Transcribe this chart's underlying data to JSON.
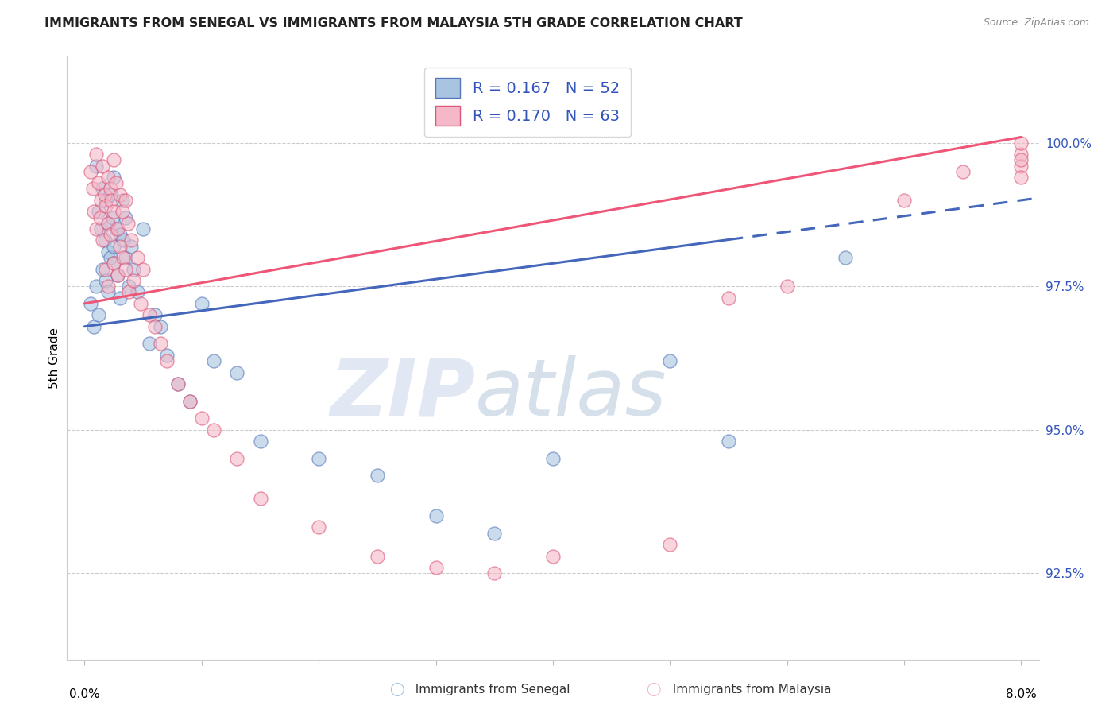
{
  "title": "IMMIGRANTS FROM SENEGAL VS IMMIGRANTS FROM MALAYSIA 5TH GRADE CORRELATION CHART",
  "source": "Source: ZipAtlas.com",
  "ylabel": "5th Grade",
  "ytick_labels": [
    "92.5%",
    "95.0%",
    "97.5%",
    "100.0%"
  ],
  "ytick_values": [
    92.5,
    95.0,
    97.5,
    100.0
  ],
  "xlim": [
    0.0,
    8.0
  ],
  "ylim": [
    91.0,
    101.5
  ],
  "legend_blue_r": "R = 0.167",
  "legend_blue_n": "N = 52",
  "legend_pink_r": "R = 0.170",
  "legend_pink_n": "N = 63",
  "watermark_zip": "ZIP",
  "watermark_atlas": "atlas",
  "blue_color": "#A8C4E0",
  "pink_color": "#F4B8C8",
  "blue_edge_color": "#5577BB",
  "pink_edge_color": "#DD5577",
  "blue_line_color": "#4466BB",
  "pink_line_color": "#EE5577",
  "legend_text_color": "#3355BB",
  "blue_scatter_x": [
    0.05,
    0.08,
    0.1,
    0.1,
    0.12,
    0.12,
    0.14,
    0.15,
    0.15,
    0.17,
    0.18,
    0.18,
    0.2,
    0.2,
    0.2,
    0.22,
    0.22,
    0.24,
    0.25,
    0.25,
    0.25,
    0.27,
    0.28,
    0.3,
    0.3,
    0.32,
    0.33,
    0.35,
    0.35,
    0.38,
    0.4,
    0.42,
    0.45,
    0.5,
    0.55,
    0.6,
    0.65,
    0.7,
    0.8,
    0.9,
    1.0,
    1.1,
    1.3,
    1.5,
    2.0,
    2.5,
    3.0,
    3.5,
    4.0,
    5.0,
    5.5,
    6.5
  ],
  "blue_scatter_y": [
    97.2,
    96.8,
    99.6,
    97.5,
    98.8,
    97.0,
    98.5,
    99.2,
    97.8,
    98.3,
    99.0,
    97.6,
    98.6,
    98.1,
    97.4,
    99.1,
    98.0,
    98.7,
    99.4,
    98.2,
    97.9,
    98.5,
    97.7,
    98.4,
    97.3,
    99.0,
    98.3,
    98.7,
    98.0,
    97.5,
    98.2,
    97.8,
    97.4,
    98.5,
    96.5,
    97.0,
    96.8,
    96.3,
    95.8,
    95.5,
    97.2,
    96.2,
    96.0,
    94.8,
    94.5,
    94.2,
    93.5,
    93.2,
    94.5,
    96.2,
    94.8,
    98.0
  ],
  "pink_scatter_x": [
    0.05,
    0.07,
    0.08,
    0.1,
    0.1,
    0.12,
    0.13,
    0.14,
    0.15,
    0.15,
    0.17,
    0.18,
    0.18,
    0.2,
    0.2,
    0.2,
    0.22,
    0.22,
    0.23,
    0.25,
    0.25,
    0.25,
    0.27,
    0.28,
    0.28,
    0.3,
    0.3,
    0.32,
    0.33,
    0.35,
    0.35,
    0.37,
    0.38,
    0.4,
    0.42,
    0.45,
    0.48,
    0.5,
    0.55,
    0.6,
    0.65,
    0.7,
    0.8,
    0.9,
    1.0,
    1.1,
    1.3,
    1.5,
    2.0,
    2.5,
    3.0,
    3.5,
    4.0,
    5.0,
    5.5,
    6.0,
    7.0,
    7.5,
    8.0,
    8.0,
    8.0,
    8.0,
    8.0
  ],
  "pink_scatter_y": [
    99.5,
    99.2,
    98.8,
    99.8,
    98.5,
    99.3,
    98.7,
    99.0,
    99.6,
    98.3,
    99.1,
    98.9,
    97.8,
    99.4,
    98.6,
    97.5,
    99.2,
    98.4,
    99.0,
    99.7,
    98.8,
    97.9,
    99.3,
    98.5,
    97.7,
    99.1,
    98.2,
    98.8,
    98.0,
    99.0,
    97.8,
    98.6,
    97.4,
    98.3,
    97.6,
    98.0,
    97.2,
    97.8,
    97.0,
    96.8,
    96.5,
    96.2,
    95.8,
    95.5,
    95.2,
    95.0,
    94.5,
    93.8,
    93.3,
    92.8,
    92.6,
    92.5,
    92.8,
    93.0,
    97.3,
    97.5,
    99.0,
    99.5,
    99.8,
    99.6,
    99.4,
    99.7,
    100.0
  ],
  "blue_reg_x0": 0.0,
  "blue_reg_y0": 96.8,
  "blue_reg_x1": 8.0,
  "blue_reg_y1": 99.0,
  "pink_reg_x0": 0.0,
  "pink_reg_y0": 97.2,
  "pink_reg_x1": 8.0,
  "pink_reg_y1": 100.1,
  "blue_solid_end": 5.5
}
